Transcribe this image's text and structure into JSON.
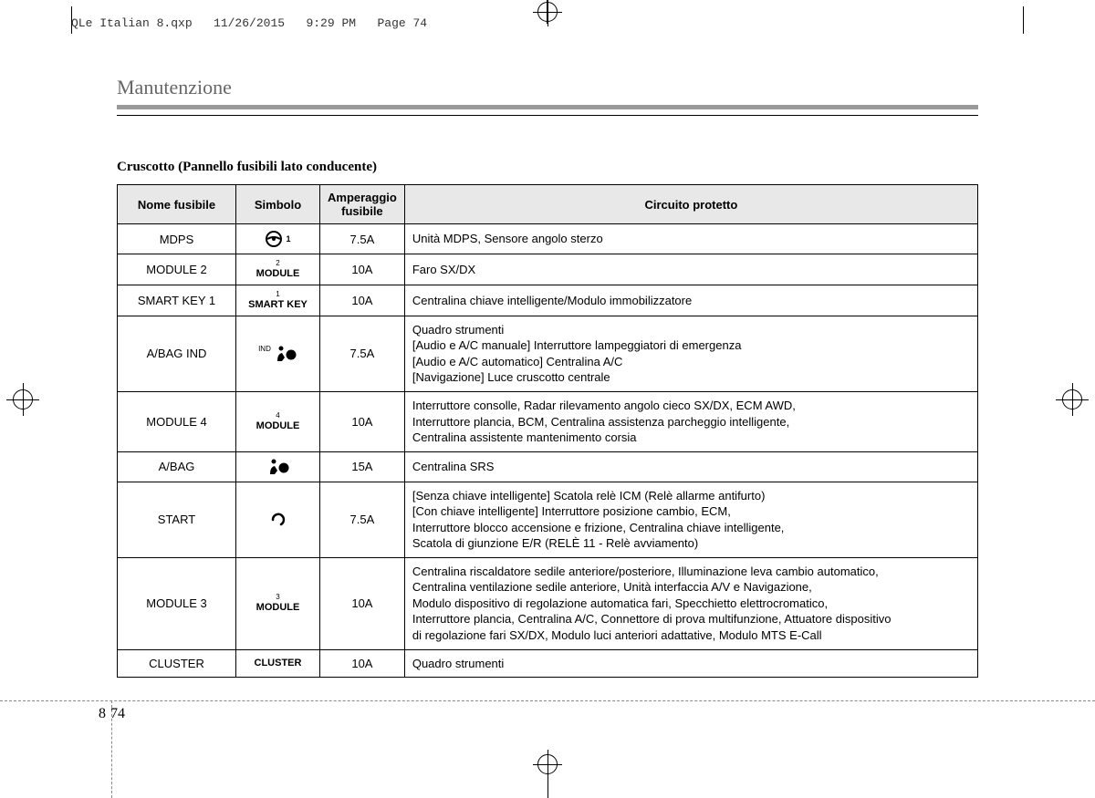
{
  "meta": {
    "filename": "QLe Italian 8.qxp",
    "date": "11/26/2015",
    "time": "9:29 PM",
    "page_marker": "Page 74"
  },
  "section_title": "Manutenzione",
  "subtitle": "Cruscotto (Pannello fusibili lato conducente)",
  "columns": {
    "name": "Nome fusibile",
    "symbol": "Simbolo",
    "amp": "Amperaggio fusibile",
    "circuit": "Circuito protetto"
  },
  "rows": [
    {
      "name": "MDPS",
      "symbol_sup": "",
      "symbol_label": "steering-icon",
      "symbol_suffix": "1",
      "amp": "7.5A",
      "circuit": "Unità MDPS, Sensore angolo sterzo"
    },
    {
      "name": "MODULE 2",
      "symbol_sup": "2",
      "symbol_label": "MODULE",
      "amp": "10A",
      "circuit": "Faro SX/DX"
    },
    {
      "name": "SMART KEY 1",
      "symbol_sup": "1",
      "symbol_label": "SMART KEY",
      "amp": "10A",
      "circuit": "Centralina chiave intelligente/Modulo immobilizzatore"
    },
    {
      "name": "A/BAG IND",
      "symbol_sup": "IND",
      "symbol_label": "airbag-icon",
      "amp": "7.5A",
      "circuit": "Quadro strumenti\n[Audio e A/C manuale] Interruttore lampeggiatori di emergenza\n[Audio e A/C  automatico] Centralina A/C\n[Navigazione] Luce cruscotto centrale"
    },
    {
      "name": "MODULE 4",
      "symbol_sup": "4",
      "symbol_label": "MODULE",
      "amp": "10A",
      "circuit": "Interruttore consolle, Radar rilevamento angolo cieco SX/DX, ECM AWD,\nInterruttore plancia, BCM, Centralina assistenza parcheggio intelligente,\nCentralina assistente mantenimento corsia"
    },
    {
      "name": "A/BAG",
      "symbol_sup": "",
      "symbol_label": "airbag-icon",
      "amp": "15A",
      "circuit": "Centralina SRS"
    },
    {
      "name": "START",
      "symbol_sup": "",
      "symbol_label": "start-icon",
      "amp": "7.5A",
      "circuit": "[Senza chiave intelligente] Scatola relè ICM (Relè allarme antifurto)\n[Con chiave intelligente] Interruttore posizione cambio, ECM,\nInterruttore blocco accensione e frizione, Centralina chiave intelligente,\nScatola di giunzione E/R (RELÈ 11 - Relè avviamento)"
    },
    {
      "name": "MODULE 3",
      "symbol_sup": "3",
      "symbol_label": "MODULE",
      "amp": "10A",
      "circuit": "Centralina riscaldatore sedile anteriore/posteriore, Illuminazione leva cambio automatico,\nCentralina ventilazione sedile anteriore, Unità interfaccia A/V e Navigazione,\nModulo dispositivo di regolazione automatica fari, Specchietto elettrocromatico,\nInterruttore plancia, Centralina A/C, Connettore di prova multifunzione, Attuatore dispositivo\ndi regolazione fari SX/DX, Modulo luci anteriori adattative, Modulo MTS E-Call"
    },
    {
      "name": "CLUSTER",
      "symbol_sup": "",
      "symbol_label": "CLUSTER",
      "amp": "10A",
      "circuit": "Quadro strumenti"
    }
  ],
  "page_number": {
    "chapter": "8",
    "page": "74"
  }
}
